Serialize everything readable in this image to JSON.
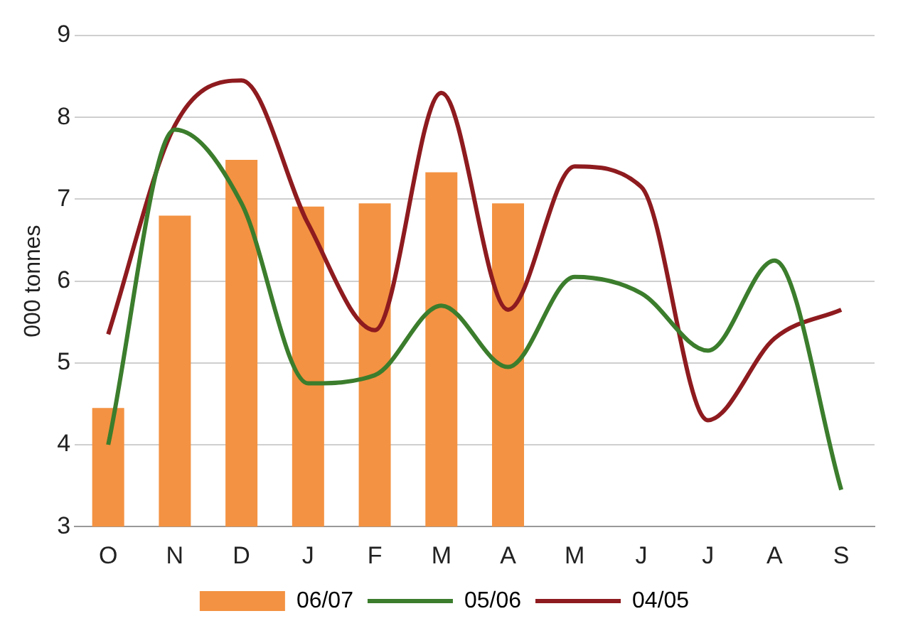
{
  "chart_data": {
    "type": "bar",
    "ylabel": "000 tonnes",
    "categories": [
      "O",
      "N",
      "D",
      "J",
      "F",
      "M",
      "A",
      "M",
      "J",
      "J",
      "A",
      "S"
    ],
    "series": [
      {
        "name": "06/07",
        "color": "#f39242",
        "values": [
          4.45,
          6.8,
          7.48,
          6.91,
          6.95,
          7.33,
          6.95,
          null,
          null,
          null,
          null,
          null
        ]
      },
      {
        "name": "05/06",
        "type": "line",
        "color": "#3b7d2c",
        "values": [
          4.0,
          7.85,
          6.95,
          4.75,
          4.85,
          5.7,
          4.95,
          6.05,
          5.85,
          5.15,
          6.25,
          3.45
        ]
      },
      {
        "name": "04/05",
        "type": "line",
        "color": "#8e1b1f",
        "values": [
          5.35,
          7.9,
          8.45,
          6.7,
          5.4,
          8.3,
          5.65,
          7.4,
          7.15,
          4.3,
          5.3,
          5.65
        ]
      }
    ],
    "ylim": [
      3,
      9
    ],
    "yticks": [
      3,
      4,
      5,
      6,
      7,
      8,
      9
    ],
    "grid": "y",
    "legend": "bottom",
    "marker": "none"
  }
}
